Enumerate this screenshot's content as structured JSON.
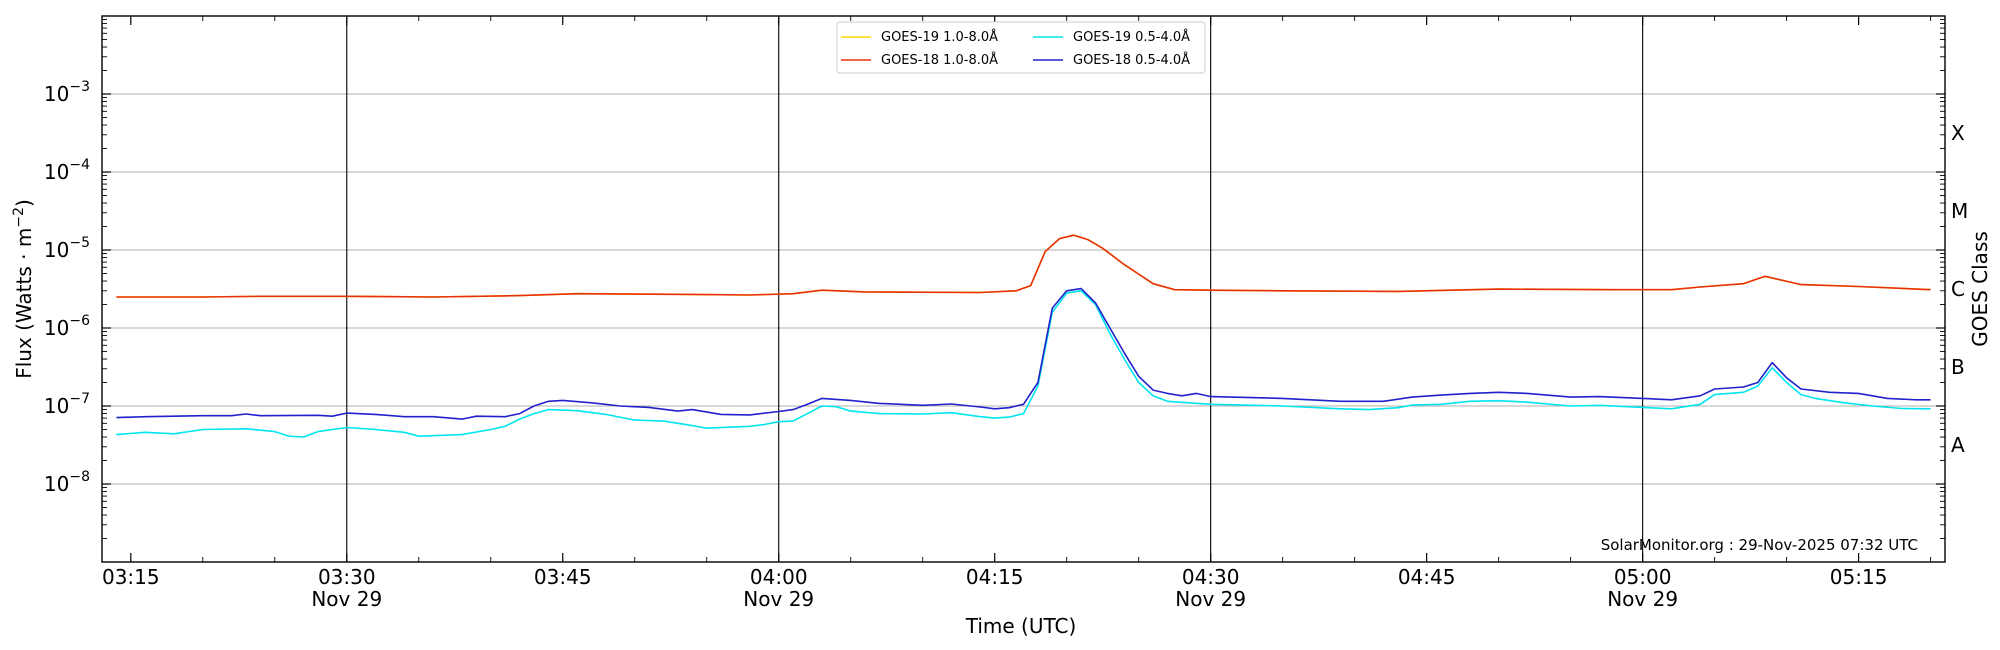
{
  "chart_data": {
    "type": "line",
    "xlabel": "Time (UTC)",
    "ylabel_text": "Flux (Watts · m",
    "ylabel_sup": "−2",
    "ylabel_close": ")",
    "right_label": "GOES Class",
    "y_scale": "log",
    "ylim": [
      1e-09,
      0.01
    ],
    "xlim_minutes": [
      193,
      321
    ],
    "x_ticks": [
      {
        "minute": 195,
        "label": "03:15",
        "sub": ""
      },
      {
        "minute": 210,
        "label": "03:30",
        "sub": "Nov 29"
      },
      {
        "minute": 225,
        "label": "03:45",
        "sub": ""
      },
      {
        "minute": 240,
        "label": "04:00",
        "sub": "Nov 29"
      },
      {
        "minute": 255,
        "label": "04:15",
        "sub": ""
      },
      {
        "minute": 270,
        "label": "04:30",
        "sub": "Nov 29"
      },
      {
        "minute": 285,
        "label": "04:45",
        "sub": ""
      },
      {
        "minute": 300,
        "label": "05:00",
        "sub": "Nov 29"
      },
      {
        "minute": 315,
        "label": "05:15",
        "sub": ""
      }
    ],
    "vlines_minutes": [
      210,
      240,
      270,
      300
    ],
    "y_ticks": [
      {
        "exp": -8,
        "base": "10",
        "sup": "−8"
      },
      {
        "exp": -7,
        "base": "10",
        "sup": "−7"
      },
      {
        "exp": -6,
        "base": "10",
        "sup": "−6"
      },
      {
        "exp": -5,
        "base": "10",
        "sup": "−5"
      },
      {
        "exp": -4,
        "base": "10",
        "sup": "−4"
      },
      {
        "exp": -3,
        "base": "10",
        "sup": "−3"
      }
    ],
    "grid_y": true,
    "class_labels": [
      {
        "label": "A",
        "exp": -7.5
      },
      {
        "label": "B",
        "exp": -6.5
      },
      {
        "label": "C",
        "exp": -5.5
      },
      {
        "label": "M",
        "exp": -4.5
      },
      {
        "label": "X",
        "exp": -3.5
      }
    ],
    "legend_position": "top-center",
    "series": [
      {
        "name": "GOES-19 1.0-8.0Å",
        "color": "#ffd700",
        "points": [
          [
            194,
            2.5e-06
          ],
          [
            200,
            2.5e-06
          ],
          [
            204,
            2.55e-06
          ],
          [
            210,
            2.55e-06
          ],
          [
            216,
            2.5e-06
          ],
          [
            222,
            2.6e-06
          ],
          [
            226,
            2.75e-06
          ],
          [
            234,
            2.7e-06
          ],
          [
            238,
            2.65e-06
          ],
          [
            241,
            2.75e-06
          ],
          [
            243,
            3.05e-06
          ],
          [
            246,
            2.9e-06
          ],
          [
            254,
            2.85e-06
          ],
          [
            256.5,
            3e-06
          ],
          [
            257.5,
            3.5e-06
          ],
          [
            258.5,
            9.5e-06
          ],
          [
            259.5,
            1.4e-05
          ],
          [
            260.5,
            1.55e-05
          ],
          [
            261.5,
            1.35e-05
          ],
          [
            262.5,
            1.05e-05
          ],
          [
            264,
            6.5e-06
          ],
          [
            266,
            3.7e-06
          ],
          [
            267.5,
            3.1e-06
          ],
          [
            270,
            3.05e-06
          ],
          [
            275,
            3e-06
          ],
          [
            283,
            2.95e-06
          ],
          [
            290,
            3.15e-06
          ],
          [
            298,
            3.1e-06
          ],
          [
            302,
            3.1e-06
          ],
          [
            304,
            3.35e-06
          ],
          [
            307,
            3.7e-06
          ],
          [
            308.5,
            4.6e-06
          ],
          [
            311,
            3.6e-06
          ],
          [
            315,
            3.4e-06
          ],
          [
            320,
            3.1e-06
          ]
        ]
      },
      {
        "name": "GOES-18 1.0-8.0Å",
        "color": "#e8300c",
        "points": [
          [
            194,
            2.5e-06
          ],
          [
            200,
            2.5e-06
          ],
          [
            204,
            2.55e-06
          ],
          [
            210,
            2.55e-06
          ],
          [
            216,
            2.5e-06
          ],
          [
            222,
            2.6e-06
          ],
          [
            226,
            2.75e-06
          ],
          [
            234,
            2.7e-06
          ],
          [
            238,
            2.65e-06
          ],
          [
            241,
            2.75e-06
          ],
          [
            243,
            3.05e-06
          ],
          [
            246,
            2.9e-06
          ],
          [
            254,
            2.85e-06
          ],
          [
            256.5,
            3e-06
          ],
          [
            257.5,
            3.5e-06
          ],
          [
            258.5,
            9.5e-06
          ],
          [
            259.5,
            1.4e-05
          ],
          [
            260.5,
            1.55e-05
          ],
          [
            261.5,
            1.35e-05
          ],
          [
            262.5,
            1.05e-05
          ],
          [
            264,
            6.5e-06
          ],
          [
            266,
            3.7e-06
          ],
          [
            267.5,
            3.1e-06
          ],
          [
            270,
            3.05e-06
          ],
          [
            275,
            3e-06
          ],
          [
            283,
            2.95e-06
          ],
          [
            290,
            3.15e-06
          ],
          [
            298,
            3.1e-06
          ],
          [
            302,
            3.1e-06
          ],
          [
            304,
            3.35e-06
          ],
          [
            307,
            3.7e-06
          ],
          [
            308.5,
            4.6e-06
          ],
          [
            311,
            3.6e-06
          ],
          [
            315,
            3.4e-06
          ],
          [
            320,
            3.1e-06
          ]
        ]
      },
      {
        "name": "GOES-19 0.5-4.0Å",
        "color": "#00e5ee",
        "points": [
          [
            194,
            4.3e-08
          ],
          [
            196,
            4.6e-08
          ],
          [
            198,
            4.4e-08
          ],
          [
            200,
            5e-08
          ],
          [
            203,
            5.1e-08
          ],
          [
            205,
            4.7e-08
          ],
          [
            206,
            4.1e-08
          ],
          [
            207,
            4e-08
          ],
          [
            208,
            4.7e-08
          ],
          [
            210,
            5.3e-08
          ],
          [
            212,
            5e-08
          ],
          [
            214,
            4.6e-08
          ],
          [
            215,
            4.1e-08
          ],
          [
            218,
            4.3e-08
          ],
          [
            220,
            5e-08
          ],
          [
            221,
            5.5e-08
          ],
          [
            222,
            6.8e-08
          ],
          [
            223,
            8e-08
          ],
          [
            224,
            9e-08
          ],
          [
            226,
            8.7e-08
          ],
          [
            228,
            7.8e-08
          ],
          [
            230,
            6.6e-08
          ],
          [
            232,
            6.4e-08
          ],
          [
            234,
            5.6e-08
          ],
          [
            235,
            5.2e-08
          ],
          [
            238,
            5.5e-08
          ],
          [
            239,
            5.8e-08
          ],
          [
            240,
            6.3e-08
          ],
          [
            241,
            6.4e-08
          ],
          [
            242,
            8e-08
          ],
          [
            243,
            1e-07
          ],
          [
            244,
            9.8e-08
          ],
          [
            245,
            8.6e-08
          ],
          [
            247,
            8e-08
          ],
          [
            250,
            7.9e-08
          ],
          [
            252,
            8.2e-08
          ],
          [
            254,
            7.3e-08
          ],
          [
            255,
            7e-08
          ],
          [
            256,
            7.2e-08
          ],
          [
            257,
            8e-08
          ],
          [
            258,
            1.8e-07
          ],
          [
            259,
            1.6e-06
          ],
          [
            260,
            2.8e-06
          ],
          [
            261,
            3e-06
          ],
          [
            262,
            2e-06
          ],
          [
            263,
            8.5e-07
          ],
          [
            264,
            4e-07
          ],
          [
            265,
            2e-07
          ],
          [
            266,
            1.35e-07
          ],
          [
            267,
            1.15e-07
          ],
          [
            270,
            1.05e-07
          ],
          [
            275,
            1e-07
          ],
          [
            279,
            9.2e-08
          ],
          [
            281,
            9e-08
          ],
          [
            283,
            9.5e-08
          ],
          [
            284,
            1.03e-07
          ],
          [
            286,
            1.05e-07
          ],
          [
            288,
            1.15e-07
          ],
          [
            290,
            1.17e-07
          ],
          [
            292,
            1.12e-07
          ],
          [
            295,
            1e-07
          ],
          [
            297,
            1.02e-07
          ],
          [
            300,
            9.6e-08
          ],
          [
            302,
            9.2e-08
          ],
          [
            304,
            1.05e-07
          ],
          [
            305,
            1.4e-07
          ],
          [
            307,
            1.5e-07
          ],
          [
            308,
            1.8e-07
          ],
          [
            309,
            3.1e-07
          ],
          [
            310,
            2e-07
          ],
          [
            311,
            1.4e-07
          ],
          [
            312,
            1.25e-07
          ],
          [
            314,
            1.1e-07
          ],
          [
            316,
            1e-07
          ],
          [
            318,
            9.3e-08
          ],
          [
            320,
            9.2e-08
          ]
        ]
      },
      {
        "name": "GOES-18 0.5-4.0Å",
        "color": "#2222cc",
        "points": [
          [
            194,
            7.1e-08
          ],
          [
            196,
            7.3e-08
          ],
          [
            200,
            7.5e-08
          ],
          [
            202,
            7.5e-08
          ],
          [
            203,
            7.9e-08
          ],
          [
            204,
            7.5e-08
          ],
          [
            208,
            7.6e-08
          ],
          [
            209,
            7.4e-08
          ],
          [
            210,
            8.1e-08
          ],
          [
            212,
            7.8e-08
          ],
          [
            214,
            7.3e-08
          ],
          [
            216,
            7.3e-08
          ],
          [
            218,
            6.8e-08
          ],
          [
            219,
            7.4e-08
          ],
          [
            221,
            7.3e-08
          ],
          [
            222,
            8e-08
          ],
          [
            223,
            1e-07
          ],
          [
            224,
            1.15e-07
          ],
          [
            225,
            1.18e-07
          ],
          [
            227,
            1.1e-07
          ],
          [
            229,
            1e-07
          ],
          [
            231,
            9.6e-08
          ],
          [
            233,
            8.6e-08
          ],
          [
            234,
            9e-08
          ],
          [
            236,
            7.8e-08
          ],
          [
            238,
            7.7e-08
          ],
          [
            240,
            8.5e-08
          ],
          [
            241,
            9e-08
          ],
          [
            242,
            1.05e-07
          ],
          [
            243,
            1.25e-07
          ],
          [
            245,
            1.18e-07
          ],
          [
            247,
            1.08e-07
          ],
          [
            250,
            1.02e-07
          ],
          [
            252,
            1.06e-07
          ],
          [
            254,
            9.7e-08
          ],
          [
            255,
            9.2e-08
          ],
          [
            256,
            9.5e-08
          ],
          [
            257,
            1.05e-07
          ],
          [
            258,
            2e-07
          ],
          [
            259,
            1.8e-06
          ],
          [
            260,
            3e-06
          ],
          [
            261,
            3.2e-06
          ],
          [
            262,
            2.1e-06
          ],
          [
            263,
            1e-06
          ],
          [
            264,
            4.8e-07
          ],
          [
            265,
            2.4e-07
          ],
          [
            266,
            1.6e-07
          ],
          [
            267,
            1.45e-07
          ],
          [
            268,
            1.35e-07
          ],
          [
            269,
            1.45e-07
          ],
          [
            270,
            1.32e-07
          ],
          [
            275,
            1.25e-07
          ],
          [
            279,
            1.15e-07
          ],
          [
            282,
            1.15e-07
          ],
          [
            284,
            1.3e-07
          ],
          [
            286,
            1.38e-07
          ],
          [
            288,
            1.45e-07
          ],
          [
            290,
            1.5e-07
          ],
          [
            292,
            1.45e-07
          ],
          [
            295,
            1.3e-07
          ],
          [
            297,
            1.32e-07
          ],
          [
            300,
            1.25e-07
          ],
          [
            302,
            1.2e-07
          ],
          [
            304,
            1.35e-07
          ],
          [
            305,
            1.65e-07
          ],
          [
            307,
            1.75e-07
          ],
          [
            308,
            2e-07
          ],
          [
            309,
            3.6e-07
          ],
          [
            310,
            2.3e-07
          ],
          [
            311,
            1.65e-07
          ],
          [
            313,
            1.5e-07
          ],
          [
            315,
            1.45e-07
          ],
          [
            317,
            1.25e-07
          ],
          [
            319,
            1.2e-07
          ],
          [
            320,
            1.2e-07
          ]
        ]
      }
    ],
    "annotation": "SolarMonitor.org : 29-Nov-2025 07:32 UTC"
  }
}
